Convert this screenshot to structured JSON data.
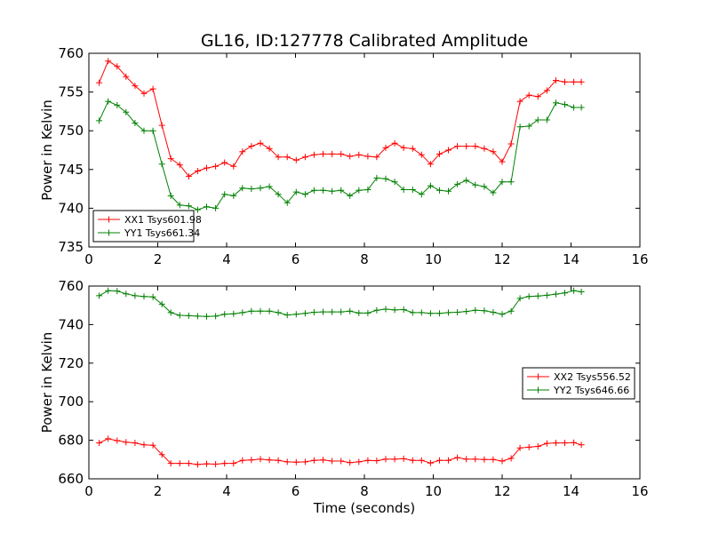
{
  "colors": {
    "xx": "#ff0000",
    "yy": "#008000"
  },
  "chart_data": [
    {
      "type": "line",
      "title": "GL16, ID:127778 Calibrated Amplitude",
      "xlabel": "",
      "ylabel": "Power in Kelvin",
      "xlim": [
        0,
        16
      ],
      "ylim": [
        735,
        760
      ],
      "xticks": [
        0,
        2,
        4,
        6,
        8,
        10,
        12,
        14,
        16
      ],
      "yticks": [
        735,
        740,
        745,
        750,
        755,
        760
      ],
      "legend_position": "lower-left",
      "series": [
        {
          "name": "XX1 Tsys601.98",
          "color": "#ff0000",
          "points": [
            [
              0.3,
              756.2
            ],
            [
              0.56,
              759.0
            ],
            [
              0.82,
              758.3
            ],
            [
              1.08,
              757.0
            ],
            [
              1.34,
              755.8
            ],
            [
              1.6,
              754.8
            ],
            [
              1.86,
              755.4
            ],
            [
              2.12,
              750.7
            ],
            [
              2.38,
              746.4
            ],
            [
              2.64,
              745.6
            ],
            [
              2.9,
              744.1
            ],
            [
              3.16,
              744.8
            ],
            [
              3.42,
              745.2
            ],
            [
              3.68,
              745.4
            ],
            [
              3.94,
              745.9
            ],
            [
              4.2,
              745.4
            ],
            [
              4.46,
              747.3
            ],
            [
              4.72,
              748.0
            ],
            [
              4.98,
              748.4
            ],
            [
              5.24,
              747.7
            ],
            [
              5.5,
              746.6
            ],
            [
              5.76,
              746.6
            ],
            [
              6.02,
              746.2
            ],
            [
              6.28,
              746.6
            ],
            [
              6.54,
              746.9
            ],
            [
              6.8,
              747.0
            ],
            [
              7.06,
              747.0
            ],
            [
              7.32,
              747.0
            ],
            [
              7.58,
              746.7
            ],
            [
              7.84,
              746.9
            ],
            [
              8.1,
              746.7
            ],
            [
              8.36,
              746.6
            ],
            [
              8.62,
              747.8
            ],
            [
              8.88,
              748.4
            ],
            [
              9.14,
              747.8
            ],
            [
              9.4,
              747.7
            ],
            [
              9.66,
              746.9
            ],
            [
              9.92,
              745.7
            ],
            [
              10.18,
              747.0
            ],
            [
              10.44,
              747.5
            ],
            [
              10.7,
              748.0
            ],
            [
              10.96,
              748.0
            ],
            [
              11.22,
              748.0
            ],
            [
              11.48,
              747.7
            ],
            [
              11.74,
              747.3
            ],
            [
              12.0,
              746.0
            ],
            [
              12.26,
              748.3
            ],
            [
              12.52,
              753.8
            ],
            [
              12.78,
              754.6
            ],
            [
              13.04,
              754.4
            ],
            [
              13.3,
              755.2
            ],
            [
              13.56,
              756.5
            ],
            [
              13.82,
              756.3
            ],
            [
              14.08,
              756.3
            ],
            [
              14.3,
              756.3
            ]
          ]
        },
        {
          "name": "YY1 Tsys661.34",
          "color": "#008000",
          "points": [
            [
              0.3,
              751.3
            ],
            [
              0.56,
              753.8
            ],
            [
              0.82,
              753.3
            ],
            [
              1.08,
              752.4
            ],
            [
              1.34,
              751.0
            ],
            [
              1.6,
              750.0
            ],
            [
              1.86,
              750.0
            ],
            [
              2.12,
              745.7
            ],
            [
              2.38,
              741.6
            ],
            [
              2.64,
              740.4
            ],
            [
              2.9,
              740.3
            ],
            [
              3.16,
              739.8
            ],
            [
              3.42,
              740.2
            ],
            [
              3.68,
              740.0
            ],
            [
              3.94,
              741.8
            ],
            [
              4.2,
              741.6
            ],
            [
              4.46,
              742.6
            ],
            [
              4.72,
              742.5
            ],
            [
              4.98,
              742.6
            ],
            [
              5.24,
              742.8
            ],
            [
              5.5,
              741.8
            ],
            [
              5.76,
              740.7
            ],
            [
              6.02,
              742.1
            ],
            [
              6.28,
              741.8
            ],
            [
              6.54,
              742.3
            ],
            [
              6.8,
              742.3
            ],
            [
              7.06,
              742.2
            ],
            [
              7.32,
              742.3
            ],
            [
              7.58,
              741.6
            ],
            [
              7.84,
              742.3
            ],
            [
              8.1,
              742.4
            ],
            [
              8.36,
              743.9
            ],
            [
              8.62,
              743.8
            ],
            [
              8.88,
              743.4
            ],
            [
              9.14,
              742.4
            ],
            [
              9.4,
              742.4
            ],
            [
              9.66,
              741.8
            ],
            [
              9.92,
              742.9
            ],
            [
              10.18,
              742.3
            ],
            [
              10.44,
              742.2
            ],
            [
              10.7,
              743.1
            ],
            [
              10.96,
              743.6
            ],
            [
              11.22,
              743.0
            ],
            [
              11.48,
              742.8
            ],
            [
              11.74,
              742.0
            ],
            [
              12.0,
              743.4
            ],
            [
              12.26,
              743.4
            ],
            [
              12.52,
              750.5
            ],
            [
              12.78,
              750.6
            ],
            [
              13.04,
              751.4
            ],
            [
              13.3,
              751.4
            ],
            [
              13.56,
              753.6
            ],
            [
              13.82,
              753.4
            ],
            [
              14.08,
              753.0
            ],
            [
              14.3,
              753.0
            ]
          ]
        }
      ]
    },
    {
      "type": "line",
      "title": "",
      "xlabel": "Time (seconds)",
      "ylabel": "Power in Kelvin",
      "xlim": [
        0,
        16
      ],
      "ylim": [
        660,
        760
      ],
      "xticks": [
        0,
        2,
        4,
        6,
        8,
        10,
        12,
        14,
        16
      ],
      "yticks": [
        660,
        680,
        700,
        720,
        740,
        760
      ],
      "legend_position": "center-right",
      "series": [
        {
          "name": "XX2 Tsys556.52",
          "color": "#ff0000",
          "points": [
            [
              0.3,
              678.6
            ],
            [
              0.56,
              680.8
            ],
            [
              0.82,
              679.8
            ],
            [
              1.08,
              679.0
            ],
            [
              1.34,
              678.6
            ],
            [
              1.6,
              677.6
            ],
            [
              1.86,
              677.4
            ],
            [
              2.12,
              672.6
            ],
            [
              2.38,
              668.0
            ],
            [
              2.64,
              668.0
            ],
            [
              2.9,
              668.0
            ],
            [
              3.16,
              667.4
            ],
            [
              3.42,
              667.8
            ],
            [
              3.68,
              667.6
            ],
            [
              3.94,
              668.0
            ],
            [
              4.2,
              668.0
            ],
            [
              4.46,
              669.6
            ],
            [
              4.72,
              669.8
            ],
            [
              4.98,
              670.2
            ],
            [
              5.24,
              669.8
            ],
            [
              5.5,
              669.6
            ],
            [
              5.76,
              668.8
            ],
            [
              6.02,
              668.6
            ],
            [
              6.28,
              668.8
            ],
            [
              6.54,
              669.6
            ],
            [
              6.8,
              669.8
            ],
            [
              7.06,
              669.2
            ],
            [
              7.32,
              669.2
            ],
            [
              7.58,
              668.4
            ],
            [
              7.84,
              668.8
            ],
            [
              8.1,
              669.6
            ],
            [
              8.36,
              669.4
            ],
            [
              8.62,
              670.2
            ],
            [
              8.88,
              670.2
            ],
            [
              9.14,
              670.4
            ],
            [
              9.4,
              669.6
            ],
            [
              9.66,
              669.6
            ],
            [
              9.92,
              668.2
            ],
            [
              10.18,
              669.6
            ],
            [
              10.44,
              669.6
            ],
            [
              10.7,
              671.0
            ],
            [
              10.96,
              670.2
            ],
            [
              11.22,
              670.2
            ],
            [
              11.48,
              670.0
            ],
            [
              11.74,
              670.0
            ],
            [
              12.0,
              669.2
            ],
            [
              12.26,
              670.6
            ],
            [
              12.52,
              676.0
            ],
            [
              12.78,
              676.4
            ],
            [
              13.04,
              676.8
            ],
            [
              13.3,
              678.4
            ],
            [
              13.56,
              678.6
            ],
            [
              13.82,
              678.6
            ],
            [
              14.08,
              678.8
            ],
            [
              14.3,
              677.6
            ]
          ]
        },
        {
          "name": "YY2 Tsys646.66",
          "color": "#008000",
          "points": [
            [
              0.3,
              755.0
            ],
            [
              0.56,
              757.6
            ],
            [
              0.82,
              757.4
            ],
            [
              1.08,
              756.0
            ],
            [
              1.34,
              755.0
            ],
            [
              1.6,
              754.6
            ],
            [
              1.86,
              754.4
            ],
            [
              2.12,
              750.6
            ],
            [
              2.38,
              746.2
            ],
            [
              2.64,
              744.8
            ],
            [
              2.9,
              744.6
            ],
            [
              3.16,
              744.4
            ],
            [
              3.42,
              744.2
            ],
            [
              3.68,
              744.4
            ],
            [
              3.94,
              745.4
            ],
            [
              4.2,
              745.6
            ],
            [
              4.46,
              746.2
            ],
            [
              4.72,
              747.0
            ],
            [
              4.98,
              747.0
            ],
            [
              5.24,
              747.0
            ],
            [
              5.5,
              746.2
            ],
            [
              5.76,
              745.0
            ],
            [
              6.02,
              745.4
            ],
            [
              6.28,
              745.8
            ],
            [
              6.54,
              746.4
            ],
            [
              6.8,
              746.6
            ],
            [
              7.06,
              746.6
            ],
            [
              7.32,
              746.6
            ],
            [
              7.58,
              747.0
            ],
            [
              7.84,
              746.0
            ],
            [
              8.1,
              746.0
            ],
            [
              8.36,
              747.4
            ],
            [
              8.62,
              748.0
            ],
            [
              8.88,
              747.6
            ],
            [
              9.14,
              747.8
            ],
            [
              9.4,
              746.2
            ],
            [
              9.66,
              746.2
            ],
            [
              9.92,
              745.8
            ],
            [
              10.18,
              745.8
            ],
            [
              10.44,
              746.2
            ],
            [
              10.7,
              746.4
            ],
            [
              10.96,
              746.8
            ],
            [
              11.22,
              747.4
            ],
            [
              11.48,
              747.2
            ],
            [
              11.74,
              746.4
            ],
            [
              12.0,
              745.4
            ],
            [
              12.26,
              747.0
            ],
            [
              12.52,
              753.6
            ],
            [
              12.78,
              754.6
            ],
            [
              13.04,
              754.8
            ],
            [
              13.3,
              755.2
            ],
            [
              13.56,
              755.8
            ],
            [
              13.82,
              756.4
            ],
            [
              14.08,
              757.6
            ],
            [
              14.3,
              757.0
            ]
          ]
        }
      ]
    }
  ]
}
